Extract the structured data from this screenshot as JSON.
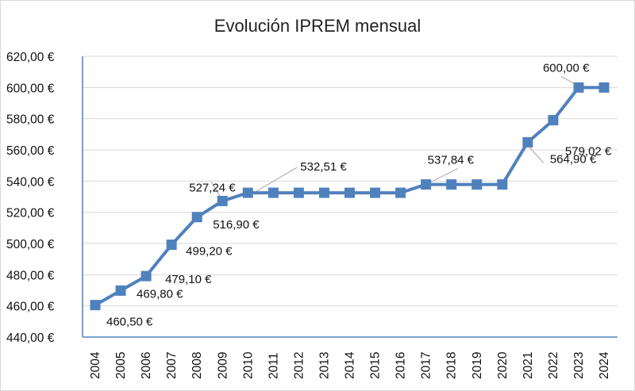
{
  "chart_data": {
    "type": "line",
    "title": "Evolución IPREM mensual",
    "xlabel": "",
    "ylabel": "",
    "categories": [
      "2004",
      "2005",
      "2006",
      "2007",
      "2008",
      "2009",
      "2010",
      "2011",
      "2012",
      "2013",
      "2014",
      "2015",
      "2016",
      "2017",
      "2018",
      "2019",
      "2020",
      "2021",
      "2022",
      "2023",
      "2024"
    ],
    "series": [
      {
        "name": "IPREM mensual",
        "color": "#4f81bd",
        "marker": "square",
        "values": [
          460.5,
          469.8,
          479.1,
          499.2,
          516.9,
          527.24,
          532.51,
          532.51,
          532.51,
          532.51,
          532.51,
          532.51,
          532.51,
          537.84,
          537.84,
          537.84,
          537.84,
          564.9,
          579.02,
          600.0,
          600.0
        ]
      }
    ],
    "ylim": [
      440,
      620
    ],
    "yticks": [
      440,
      460,
      480,
      500,
      520,
      540,
      560,
      580,
      600,
      620
    ],
    "ytick_labels": [
      "440,00 €",
      "460,00 €",
      "480,00 €",
      "500,00 €",
      "520,00 €",
      "540,00 €",
      "560,00 €",
      "580,00 €",
      "600,00 €",
      "620,00 €"
    ],
    "grid": true,
    "legend": "none",
    "data_labels": [
      {
        "index": 0,
        "text": "460,50 €",
        "position": "below-right"
      },
      {
        "index": 1,
        "text": "469,80 €",
        "position": "right"
      },
      {
        "index": 2,
        "text": "479,10 €",
        "position": "right"
      },
      {
        "index": 3,
        "text": "499,20 €",
        "position": "right"
      },
      {
        "index": 4,
        "text": "516,90 €",
        "position": "right"
      },
      {
        "index": 5,
        "text": "527,24 €",
        "position": "above"
      },
      {
        "index": 6,
        "text": "532,51 €",
        "position": "above-right"
      },
      {
        "index": 13,
        "text": "537,84 €",
        "position": "above"
      },
      {
        "index": 17,
        "text": "564,90 €",
        "position": "below-right"
      },
      {
        "index": 18,
        "text": "579,02 €",
        "position": "below-right"
      },
      {
        "index": 19,
        "text": "600,00 €",
        "position": "above"
      }
    ],
    "colors": {
      "line": "#4f81bd",
      "axis": "#4f81bd",
      "grid": "#d9d9d9",
      "leader": "#a6a6a6"
    }
  }
}
